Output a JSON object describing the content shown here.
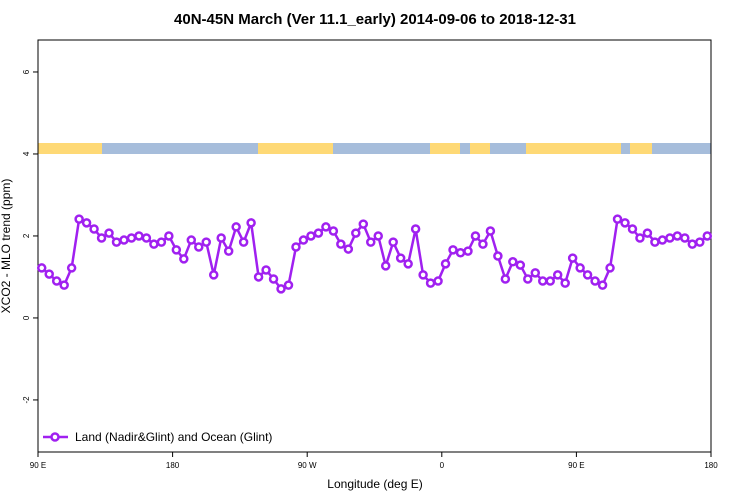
{
  "chart_data": {
    "type": "line",
    "title": "40N-45N March (Ver 11.1_early)   2014-09-06 to 2018-12-31",
    "x_label": "Longitude (deg E)",
    "y_label": "XCO2 - MLO trend (ppm)",
    "xlim": [
      90,
      540
    ],
    "ylim": [
      -3.27,
      6.78
    ],
    "xticks": [
      {
        "value": 90,
        "label": "90 E"
      },
      180,
      {
        "value": 270,
        "label": "90 W"
      },
      {
        "value": 360,
        "label": "0"
      },
      {
        "value": 450,
        "label": "90 E"
      },
      {
        "value": 540,
        "label": "180"
      }
    ],
    "yticks": [
      -2,
      0,
      2,
      4,
      6
    ],
    "legend": "bottom-left",
    "x": [
      92.5,
      97.5,
      102.5,
      107.5,
      112.5,
      117.5,
      122.5,
      127.5,
      132.5,
      137.5,
      142.5,
      147.5,
      152.5,
      157.5,
      162.5,
      167.5,
      172.5,
      177.5,
      182.5,
      187.5,
      192.5,
      197.5,
      202.5,
      207.5,
      212.5,
      217.5,
      222.5,
      227.5,
      232.5,
      237.5,
      242.5,
      247.5,
      252.5,
      257.5,
      262.5,
      267.5,
      272.5,
      277.5,
      282.5,
      287.5,
      292.5,
      297.5,
      302.5,
      307.5,
      312.5,
      317.5,
      322.5,
      327.5,
      332.5,
      337.5,
      342.5,
      347.5,
      352.5,
      357.5,
      362.5,
      367.5,
      372.5,
      377.5,
      382.5,
      387.5,
      392.5,
      397.5,
      402.5,
      407.5,
      412.5,
      417.5,
      422.5,
      427.5,
      432.5,
      437.5,
      442.5,
      447.5,
      452.5,
      457.5,
      462.5,
      467.5,
      472.5,
      477.5,
      482.5,
      487.5,
      492.5,
      497.5,
      502.5,
      507.5,
      512.5,
      517.5,
      522.5,
      527.5,
      532.5,
      537.5
    ],
    "series": [
      {
        "name": "Land (Nadir&Glint) and Ocean (Glint)",
        "color": "#a020f0",
        "values": [
          1.22,
          1.07,
          0.9,
          0.8,
          1.22,
          2.41,
          2.32,
          2.17,
          1.95,
          2.07,
          1.85,
          1.9,
          1.95,
          2.0,
          1.95,
          1.8,
          1.85,
          2.0,
          1.66,
          1.44,
          1.9,
          1.73,
          1.85,
          1.05,
          1.95,
          1.63,
          2.22,
          1.85,
          2.32,
          1.0,
          1.17,
          0.95,
          0.71,
          0.8,
          1.73,
          1.9,
          2.0,
          2.07,
          2.22,
          2.12,
          1.8,
          1.68,
          2.07,
          2.29,
          1.85,
          2.0,
          1.27,
          1.85,
          1.46,
          1.32,
          2.17,
          1.05,
          0.85,
          0.9,
          1.32,
          1.66,
          1.59,
          1.63,
          2.0,
          1.8,
          2.12,
          1.51,
          0.95,
          1.37,
          1.29,
          0.95,
          1.1,
          0.9,
          0.9,
          1.05,
          0.85,
          1.46,
          1.22,
          1.05,
          0.9,
          0.8,
          1.22,
          2.41,
          2.32,
          2.17,
          1.95,
          2.07,
          1.85,
          1.9,
          1.95,
          2.0,
          1.95,
          1.8,
          1.85,
          2.0
        ]
      }
    ]
  }
}
